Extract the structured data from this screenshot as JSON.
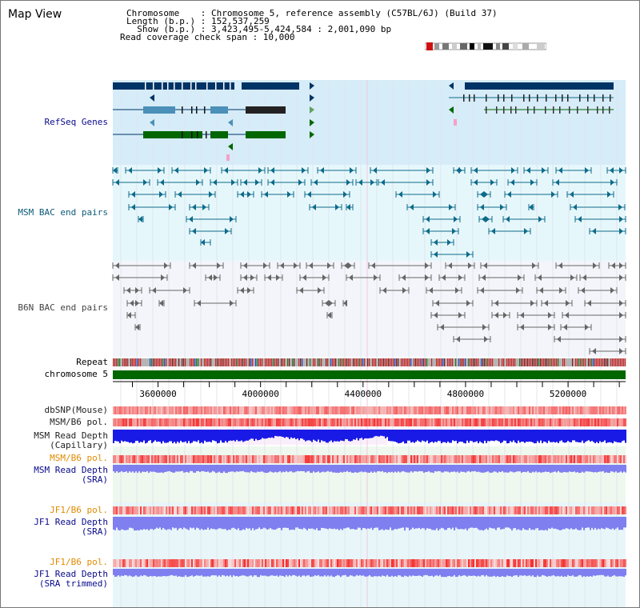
{
  "header": {
    "title": "Map View",
    "info_lines": [
      "Chromosome    : Chromosome 5, reference assembly (C57BL/6J) (Build 37)",
      "Length (b.p.) : 152,537,259",
      "  Show (b.p.) : 3,423,495-5,424,584 : 2,001,090 bp",
      "Read coverage check span : 10,000"
    ]
  },
  "region": {
    "start": 3423495,
    "end": 5424584
  },
  "tracks": {
    "refseq": "RefSeq Genes",
    "msm_bac": "MSM BAC end pairs",
    "b6n_bac": "B6N BAC end pairs",
    "repeat": "Repeat",
    "chromosome": "chromosome 5",
    "dbsnp": "dbSNP(Mouse)",
    "msm_b6_pol": "MSM/B6 pol.",
    "msm_depth_cap_1": "MSM Read Depth",
    "msm_depth_cap_2": "(Capillary)",
    "msm_b6_pol_2": "MSM/B6 pol.",
    "msm_depth_sra_1": "MSM Read Depth",
    "msm_depth_sra_2": "(SRA)",
    "jf1_b6_pol": "JF1/B6 pol.",
    "jf1_depth_sra_1": "JF1 Read Depth",
    "jf1_depth_sra_2": "(SRA)",
    "jf1_b6_pol_2": "JF1/B6 pol.",
    "jf1_depth_trim_1": "JF1 Read Depth",
    "jf1_depth_trim_2": "(SRA trimmed)"
  },
  "axis_ticks": [
    "3600000",
    "4000000",
    "4400000",
    "4800000",
    "5200000"
  ],
  "colors": {
    "refseq_band": "#d6ecf8",
    "bac_band": "#e6f7fb",
    "b6n_band": "#f3f5fa",
    "gene_navy": "#003366",
    "gene_blue": "#4a90b8",
    "gene_green": "#006600",
    "bac_teal": "#0d6b8a",
    "bac_grey": "#666666",
    "chromosome_bar": "#006600",
    "depth_blue": "#1a1ae6",
    "depth_light": "#7f7ff0",
    "pol_red": "#e8383a"
  }
}
